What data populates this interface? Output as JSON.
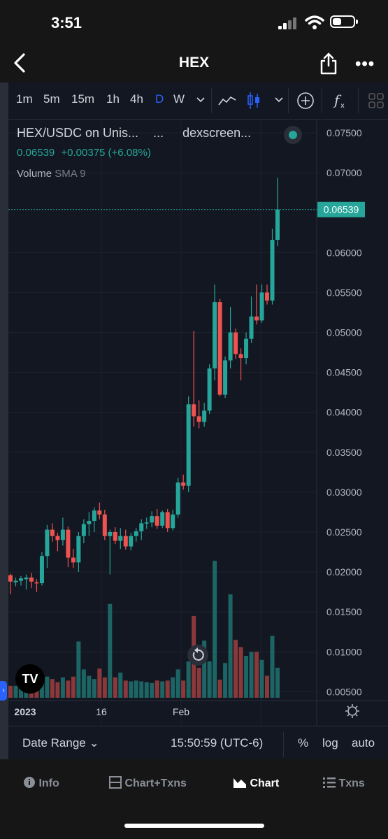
{
  "status_bar": {
    "time": "3:51"
  },
  "nav": {
    "title": "HEX"
  },
  "toolbar": {
    "timeframes": [
      "1m",
      "5m",
      "15m",
      "1h",
      "4h",
      "D",
      "W"
    ],
    "active": "D"
  },
  "legend": {
    "pair": "HEX/USDC on Unis...",
    "dots": "...",
    "source": "dexscreen...",
    "price": "0.06539",
    "change": "+0.00375 (+6.08%)",
    "volume_label": "Volume",
    "sma_label": "SMA 9"
  },
  "price_axis": {
    "ticks": [
      "0.07500",
      "0.07000",
      "0.06539",
      "0.06000",
      "0.05500",
      "0.05000",
      "0.04500",
      "0.04000",
      "0.03500",
      "0.03000",
      "0.02500",
      "0.02000",
      "0.01500",
      "0.01000",
      "0.00500"
    ],
    "current": "0.06539"
  },
  "time_axis": {
    "ticks": [
      "2023",
      "16",
      "Feb"
    ]
  },
  "bottom_bar": {
    "date_range": "Date Range",
    "clock": "15:50:59 (UTC-6)",
    "pct": "%",
    "log": "log",
    "auto": "auto"
  },
  "tabs": {
    "info": "Info",
    "chart_txns": "Chart+Txns",
    "chart": "Chart",
    "txns": "Txns"
  },
  "colors": {
    "up": "#26a69a",
    "down": "#ef5350",
    "background": "#131722",
    "accent": "#2962ff"
  },
  "chart_data": {
    "type": "candlestick",
    "title": "HEX/USDC on Unis...",
    "ylim": [
      0.004,
      0.077
    ],
    "candles": [
      {
        "o": 0.0196,
        "h": 0.0198,
        "l": 0.0172,
        "c": 0.0188
      },
      {
        "o": 0.0187,
        "h": 0.0193,
        "l": 0.0182,
        "c": 0.0189
      },
      {
        "o": 0.0189,
        "h": 0.0195,
        "l": 0.0183,
        "c": 0.0192
      },
      {
        "o": 0.0191,
        "h": 0.0197,
        "l": 0.0178,
        "c": 0.0193
      },
      {
        "o": 0.0193,
        "h": 0.0199,
        "l": 0.018,
        "c": 0.0188
      },
      {
        "o": 0.0187,
        "h": 0.0191,
        "l": 0.0175,
        "c": 0.0186
      },
      {
        "o": 0.0186,
        "h": 0.0225,
        "l": 0.0183,
        "c": 0.022
      },
      {
        "o": 0.022,
        "h": 0.0259,
        "l": 0.0205,
        "c": 0.0253
      },
      {
        "o": 0.0253,
        "h": 0.0261,
        "l": 0.0238,
        "c": 0.0245
      },
      {
        "o": 0.0245,
        "h": 0.0249,
        "l": 0.0226,
        "c": 0.024
      },
      {
        "o": 0.024,
        "h": 0.0268,
        "l": 0.0233,
        "c": 0.0253
      },
      {
        "o": 0.0253,
        "h": 0.0257,
        "l": 0.0206,
        "c": 0.0218
      },
      {
        "o": 0.0218,
        "h": 0.0229,
        "l": 0.0205,
        "c": 0.0212
      },
      {
        "o": 0.0212,
        "h": 0.025,
        "l": 0.02,
        "c": 0.0245
      },
      {
        "o": 0.0245,
        "h": 0.0266,
        "l": 0.0236,
        "c": 0.026
      },
      {
        "o": 0.026,
        "h": 0.0275,
        "l": 0.0245,
        "c": 0.0264
      },
      {
        "o": 0.0264,
        "h": 0.0281,
        "l": 0.025,
        "c": 0.0277
      },
      {
        "o": 0.0277,
        "h": 0.0287,
        "l": 0.0266,
        "c": 0.0272
      },
      {
        "o": 0.0272,
        "h": 0.0278,
        "l": 0.024,
        "c": 0.0245
      },
      {
        "o": 0.0245,
        "h": 0.0253,
        "l": 0.0197,
        "c": 0.025
      },
      {
        "o": 0.025,
        "h": 0.0256,
        "l": 0.0235,
        "c": 0.0239
      },
      {
        "o": 0.0239,
        "h": 0.0255,
        "l": 0.0229,
        "c": 0.0245
      },
      {
        "o": 0.0245,
        "h": 0.0253,
        "l": 0.0228,
        "c": 0.0232
      },
      {
        "o": 0.0232,
        "h": 0.0249,
        "l": 0.0227,
        "c": 0.0245
      },
      {
        "o": 0.0245,
        "h": 0.0255,
        "l": 0.0238,
        "c": 0.0251
      },
      {
        "o": 0.0251,
        "h": 0.0266,
        "l": 0.024,
        "c": 0.0261
      },
      {
        "o": 0.0261,
        "h": 0.0268,
        "l": 0.0254,
        "c": 0.0262
      },
      {
        "o": 0.0262,
        "h": 0.0276,
        "l": 0.0256,
        "c": 0.027
      },
      {
        "o": 0.027,
        "h": 0.0279,
        "l": 0.0254,
        "c": 0.0258
      },
      {
        "o": 0.0258,
        "h": 0.0277,
        "l": 0.0255,
        "c": 0.0275
      },
      {
        "o": 0.0275,
        "h": 0.0279,
        "l": 0.025,
        "c": 0.0255
      },
      {
        "o": 0.0255,
        "h": 0.0278,
        "l": 0.0252,
        "c": 0.0272
      },
      {
        "o": 0.0272,
        "h": 0.0318,
        "l": 0.0268,
        "c": 0.0312
      },
      {
        "o": 0.0312,
        "h": 0.0322,
        "l": 0.0303,
        "c": 0.0308
      },
      {
        "o": 0.0308,
        "h": 0.042,
        "l": 0.03,
        "c": 0.041
      },
      {
        "o": 0.041,
        "h": 0.0502,
        "l": 0.0382,
        "c": 0.0395
      },
      {
        "o": 0.0395,
        "h": 0.0415,
        "l": 0.038,
        "c": 0.0388
      },
      {
        "o": 0.0388,
        "h": 0.0412,
        "l": 0.0382,
        "c": 0.0402
      },
      {
        "o": 0.0402,
        "h": 0.046,
        "l": 0.0398,
        "c": 0.0455
      },
      {
        "o": 0.0455,
        "h": 0.056,
        "l": 0.044,
        "c": 0.0538
      },
      {
        "o": 0.0538,
        "h": 0.0542,
        "l": 0.042,
        "c": 0.0422
      },
      {
        "o": 0.0422,
        "h": 0.047,
        "l": 0.0418,
        "c": 0.0465
      },
      {
        "o": 0.0465,
        "h": 0.0532,
        "l": 0.0455,
        "c": 0.05
      },
      {
        "o": 0.05,
        "h": 0.0505,
        "l": 0.0467,
        "c": 0.0473
      },
      {
        "o": 0.0473,
        "h": 0.048,
        "l": 0.044,
        "c": 0.0468
      },
      {
        "o": 0.0468,
        "h": 0.05,
        "l": 0.046,
        "c": 0.0492
      },
      {
        "o": 0.0492,
        "h": 0.0545,
        "l": 0.0487,
        "c": 0.052
      },
      {
        "o": 0.052,
        "h": 0.056,
        "l": 0.051,
        "c": 0.0515
      },
      {
        "o": 0.0515,
        "h": 0.056,
        "l": 0.0512,
        "c": 0.055
      },
      {
        "o": 0.055,
        "h": 0.056,
        "l": 0.0535,
        "c": 0.054
      },
      {
        "o": 0.054,
        "h": 0.063,
        "l": 0.0535,
        "c": 0.0616
      },
      {
        "o": 0.0616,
        "h": 0.0694,
        "l": 0.0608,
        "c": 0.0654
      }
    ],
    "volume": [
      0.00575,
      0.00575,
      0.0054,
      0.00575,
      0.0055,
      0.0052,
      0.0062,
      0.0069,
      0.0066,
      0.0062,
      0.0068,
      0.0064,
      0.0069,
      0.0113,
      0.0078,
      0.007,
      0.0066,
      0.0079,
      0.0068,
      0.016,
      0.0068,
      0.0074,
      0.0064,
      0.0063,
      0.0064,
      0.0063,
      0.0062,
      0.0061,
      0.0064,
      0.0063,
      0.0064,
      0.0068,
      0.0078,
      0.0064,
      0.0088,
      0.0145,
      0.008,
      0.0114,
      0.0088,
      0.0214,
      0.0065,
      0.0086,
      0.0172,
      0.0115,
      0.0106,
      0.0095,
      0.01,
      0.01,
      0.009,
      0.007,
      0.012,
      0.008
    ]
  }
}
